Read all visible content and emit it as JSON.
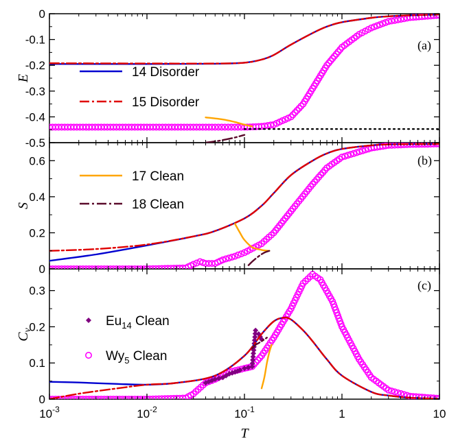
{
  "colors": {
    "blue": "#0000d0",
    "red": "#e00000",
    "magenta": "#ff00ff",
    "orange": "#ffa500",
    "maroon": "#5a0a2a",
    "purple": "#800080"
  },
  "chart_data": [
    {
      "type": "line",
      "panel": "(a)",
      "ylabel": "E",
      "xlabel": "",
      "xscale": "log",
      "xlim": [
        0.001,
        10
      ],
      "ylim": [
        -0.5,
        0
      ],
      "yticks": [
        0,
        -0.1,
        -0.2,
        -0.3,
        -0.4,
        -0.5
      ],
      "ytick_labels": [
        "0",
        "-0.1",
        "-0.2",
        "-0.3",
        "-0.4",
        "-0.5"
      ],
      "legend_position": "left",
      "legend": [
        {
          "label": "14 Disorder",
          "series": "14"
        },
        {
          "label": "15 Disorder",
          "series": "15"
        }
      ],
      "series": [
        {
          "key": "14",
          "style": "solid",
          "color": "#0000d0",
          "x": [
            0.001,
            0.01,
            0.05,
            0.1,
            0.15,
            0.2,
            0.3,
            0.5,
            0.7,
            1,
            2,
            3,
            5,
            10
          ],
          "y": [
            -0.195,
            -0.195,
            -0.194,
            -0.19,
            -0.178,
            -0.16,
            -0.12,
            -0.075,
            -0.05,
            -0.033,
            -0.016,
            -0.01,
            -0.006,
            -0.003
          ]
        },
        {
          "key": "15",
          "style": "dashdot",
          "color": "#e00000",
          "x": [
            0.001,
            0.01,
            0.05,
            0.1,
            0.15,
            0.2,
            0.3,
            0.5,
            0.7,
            1,
            2,
            3,
            5,
            10
          ],
          "y": [
            -0.192,
            -0.193,
            -0.193,
            -0.19,
            -0.178,
            -0.16,
            -0.12,
            -0.075,
            -0.05,
            -0.033,
            -0.016,
            -0.01,
            -0.006,
            -0.003
          ]
        },
        {
          "key": "wy",
          "style": "circles",
          "color": "#ff00ff",
          "x": [
            0.001,
            0.01,
            0.05,
            0.1,
            0.15,
            0.2,
            0.3,
            0.4,
            0.5,
            0.7,
            1,
            1.5,
            2,
            3,
            5,
            10
          ],
          "y": [
            -0.44,
            -0.44,
            -0.44,
            -0.44,
            -0.437,
            -0.43,
            -0.4,
            -0.35,
            -0.29,
            -0.2,
            -0.13,
            -0.08,
            -0.055,
            -0.03,
            -0.015,
            -0.006
          ]
        },
        {
          "key": "17",
          "style": "solid",
          "color": "#ffa500",
          "x": [
            0.04,
            0.06,
            0.08,
            0.1,
            0.12
          ],
          "y": [
            -0.402,
            -0.41,
            -0.42,
            -0.43,
            -0.437
          ]
        },
        {
          "key": "18",
          "style": "dashdot",
          "color": "#5a0a2a",
          "x": [
            0.04,
            0.05,
            0.06,
            0.08,
            0.1
          ],
          "y": [
            -0.5,
            -0.495,
            -0.49,
            -0.48,
            -0.47
          ]
        },
        {
          "key": "ground",
          "style": "dotted",
          "color": "#000000",
          "x": [
            0.1,
            10
          ],
          "y": [
            -0.447,
            -0.447
          ]
        }
      ]
    },
    {
      "type": "line",
      "panel": "(b)",
      "ylabel": "S",
      "xlabel": "",
      "xscale": "log",
      "xlim": [
        0.001,
        10
      ],
      "ylim": [
        0,
        0.7
      ],
      "yticks": [
        0,
        0.2,
        0.4,
        0.6
      ],
      "ytick_labels": [
        "0",
        "0.2",
        "0.4",
        "0.6"
      ],
      "legend_position": "left",
      "legend": [
        {
          "label": "17 Clean",
          "series": "17"
        },
        {
          "label": "18 Clean",
          "series": "18"
        }
      ],
      "series": [
        {
          "key": "14",
          "style": "solid",
          "color": "#0000d0",
          "x": [
            0.001,
            0.003,
            0.01,
            0.03,
            0.05,
            0.1,
            0.15,
            0.2,
            0.3,
            0.5,
            0.7,
            1,
            2,
            3,
            5,
            10
          ],
          "y": [
            0.045,
            0.08,
            0.13,
            0.18,
            0.21,
            0.28,
            0.35,
            0.42,
            0.52,
            0.6,
            0.64,
            0.665,
            0.685,
            0.69,
            0.692,
            0.693
          ]
        },
        {
          "key": "15",
          "style": "dashdot",
          "color": "#e00000",
          "x": [
            0.001,
            0.003,
            0.01,
            0.03,
            0.05,
            0.1,
            0.15,
            0.2,
            0.3,
            0.5,
            0.7,
            1,
            2,
            3,
            5,
            10
          ],
          "y": [
            0.1,
            0.11,
            0.135,
            0.18,
            0.21,
            0.28,
            0.35,
            0.42,
            0.52,
            0.6,
            0.64,
            0.665,
            0.685,
            0.69,
            0.692,
            0.693
          ]
        },
        {
          "key": "wy",
          "style": "circles",
          "color": "#ff00ff",
          "x": [
            0.001,
            0.01,
            0.025,
            0.03,
            0.035,
            0.04,
            0.05,
            0.06,
            0.08,
            0.1,
            0.15,
            0.2,
            0.3,
            0.5,
            0.7,
            1,
            2,
            3,
            5,
            10
          ],
          "y": [
            0,
            0,
            0.005,
            0.025,
            0.04,
            0.03,
            0.03,
            0.05,
            0.07,
            0.09,
            0.14,
            0.2,
            0.32,
            0.47,
            0.56,
            0.62,
            0.67,
            0.685,
            0.69,
            0.693
          ]
        },
        {
          "key": "17",
          "style": "solid",
          "color": "#ffa500",
          "x": [
            0.08,
            0.09,
            0.1,
            0.12,
            0.15,
            0.18
          ],
          "y": [
            0.25,
            0.2,
            0.16,
            0.12,
            0.105,
            0.1
          ]
        },
        {
          "key": "18",
          "style": "dashdot",
          "color": "#5a0a2a",
          "x": [
            0.11,
            0.12,
            0.14,
            0.16,
            0.18
          ],
          "y": [
            0.02,
            0.04,
            0.07,
            0.09,
            0.1
          ]
        }
      ]
    },
    {
      "type": "line",
      "panel": "(c)",
      "ylabel": "Cv",
      "xlabel": "T",
      "xscale": "log",
      "xlim": [
        0.001,
        10
      ],
      "ylim": [
        0,
        0.36
      ],
      "yticks": [
        0,
        0.1,
        0.2,
        0.3
      ],
      "ytick_labels": [
        "0",
        "0.1",
        "0.2",
        "0.3"
      ],
      "xticks": [
        0.001,
        0.01,
        0.1,
        1,
        10
      ],
      "legend_position": "left",
      "legend": [
        {
          "label": "Eu",
          "sub": "14",
          "suffix": " Clean",
          "series": "eu"
        },
        {
          "label": "Wy",
          "sub": "5",
          "suffix": " Clean",
          "series": "wy"
        }
      ],
      "series": [
        {
          "key": "14",
          "style": "solid",
          "color": "#0000d0",
          "x": [
            0.001,
            0.002,
            0.005,
            0.01,
            0.02,
            0.05,
            0.1,
            0.15,
            0.2,
            0.25,
            0.3,
            0.4,
            0.5,
            0.7,
            1,
            2,
            3,
            5,
            10
          ],
          "y": [
            0.048,
            0.046,
            0.042,
            0.04,
            0.045,
            0.065,
            0.12,
            0.18,
            0.215,
            0.225,
            0.22,
            0.19,
            0.16,
            0.11,
            0.065,
            0.02,
            0.01,
            0.004,
            0.001
          ]
        },
        {
          "key": "15",
          "style": "dashdot",
          "color": "#e00000",
          "x": [
            0.001,
            0.002,
            0.005,
            0.01,
            0.02,
            0.05,
            0.1,
            0.15,
            0.2,
            0.25,
            0.3,
            0.4,
            0.5,
            0.7,
            1,
            2,
            3,
            5,
            10
          ],
          "y": [
            0,
            0.015,
            0.03,
            0.04,
            0.045,
            0.065,
            0.12,
            0.18,
            0.215,
            0.225,
            0.22,
            0.19,
            0.16,
            0.11,
            0.065,
            0.02,
            0.01,
            0.004,
            0.001
          ]
        },
        {
          "key": "wy",
          "style": "circles",
          "color": "#ff00ff",
          "x": [
            0.001,
            0.01,
            0.025,
            0.03,
            0.04,
            0.05,
            0.07,
            0.1,
            0.12,
            0.15,
            0.2,
            0.3,
            0.4,
            0.5,
            0.6,
            0.8,
            1,
            1.5,
            2,
            3,
            5,
            10
          ],
          "y": [
            0,
            0,
            0.003,
            0.015,
            0.045,
            0.055,
            0.075,
            0.085,
            0.09,
            0.12,
            0.17,
            0.25,
            0.32,
            0.345,
            0.33,
            0.27,
            0.2,
            0.11,
            0.06,
            0.025,
            0.008,
            0.002
          ]
        },
        {
          "key": "eu",
          "style": "diamonds",
          "color": "#800080",
          "x": [
            0.04,
            0.05,
            0.06,
            0.07,
            0.08,
            0.09,
            0.1,
            0.12,
            0.13,
            0.14,
            0.15
          ],
          "y": [
            0.045,
            0.055,
            0.06,
            0.07,
            0.075,
            0.08,
            0.085,
            0.09,
            0.19,
            0.18,
            0.165
          ]
        },
        {
          "key": "17",
          "style": "solid",
          "color": "#ffa500",
          "x": [
            0.15,
            0.16,
            0.17,
            0.18,
            0.19
          ],
          "y": [
            0.03,
            0.06,
            0.1,
            0.13,
            0.15
          ]
        },
        {
          "key": "18",
          "style": "dashdot",
          "color": "#5a0a2a",
          "x": [
            0.12,
            0.13,
            0.14,
            0.15,
            0.16,
            0.17
          ],
          "y": [
            0.14,
            0.15,
            0.155,
            0.16,
            0.165,
            0.17
          ]
        }
      ]
    }
  ],
  "xtick_labels": {
    "0": {
      "base": "10",
      "exp": "-3"
    },
    "1": {
      "base": "10",
      "exp": "-2"
    },
    "2": {
      "base": "10",
      "exp": "-1"
    },
    "3": {
      "base": "1",
      "exp": ""
    },
    "4": {
      "base": "10",
      "exp": ""
    }
  }
}
